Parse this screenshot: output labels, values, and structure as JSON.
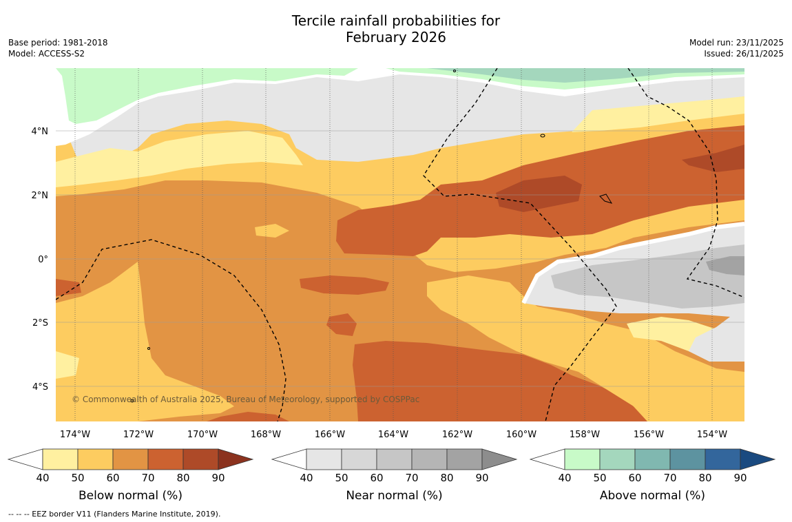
{
  "header": {
    "title_line1": "Tercile rainfall probabilities for",
    "title_line2": "February 2026",
    "base_period": "Base period: 1981-2018",
    "model": "Model: ACCESS-S2",
    "model_run": "Model run: 23/11/2025",
    "issued": "Issued: 26/11/2025"
  },
  "map": {
    "copyright": "© Commonwealth of Australia 2025, Bureau of Meteorology, supported by COSPPac",
    "lon_ticks": [
      "174°W",
      "172°W",
      "170°W",
      "168°W",
      "166°W",
      "164°W",
      "162°W",
      "160°W",
      "158°W",
      "156°W",
      "154°W"
    ],
    "lat_ticks": [
      "4°N",
      "2°N",
      "0°",
      "2°S",
      "4°S"
    ]
  },
  "legends": [
    {
      "label": "Below normal (%)",
      "ticks": [
        "40",
        "50",
        "60",
        "70",
        "80",
        "90"
      ],
      "colors": [
        "#fff0a0",
        "#fdcc60",
        "#e29444",
        "#cc6230",
        "#ae4a28",
        "#8b321e"
      ]
    },
    {
      "label": "Near normal (%)",
      "ticks": [
        "40",
        "50",
        "60",
        "70",
        "80",
        "90"
      ],
      "colors": [
        "#e6e6e6",
        "#d7d7d7",
        "#c6c6c6",
        "#b5b5b5",
        "#a3a3a3",
        "#8d8d8d"
      ]
    },
    {
      "label": "Above normal (%)",
      "ticks": [
        "40",
        "50",
        "60",
        "70",
        "80",
        "90"
      ],
      "colors": [
        "#c8fac8",
        "#a4d7bd",
        "#80b8b0",
        "#5d93a0",
        "#33669c",
        "#1a4a80"
      ]
    }
  ],
  "footer": {
    "eez_note": "--  --  -- EEZ border V11 (Flanders Marine Institute, 2019)."
  }
}
